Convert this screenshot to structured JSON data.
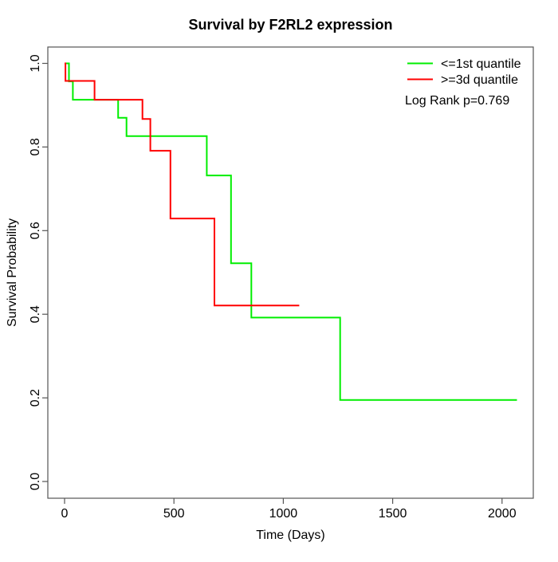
{
  "chart_data": {
    "type": "line",
    "subtype": "kaplan-meier-step",
    "title": "Survival by F2RL2 expression",
    "xlabel": "Time (Days)",
    "ylabel": "Survival Probability",
    "xlim": [
      0,
      2100
    ],
    "ylim": [
      0.0,
      1.0
    ],
    "grid": false,
    "legend_position": "top-right-inside",
    "annotation": "Log Rank p=0.769",
    "x_ticks": [
      {
        "v": 0,
        "label": "0"
      },
      {
        "v": 500,
        "label": "500"
      },
      {
        "v": 1000,
        "label": "1000"
      },
      {
        "v": 1500,
        "label": "1500"
      },
      {
        "v": 2000,
        "label": "2000"
      }
    ],
    "y_ticks": [
      {
        "v": 0.0,
        "label": "0.0"
      },
      {
        "v": 0.2,
        "label": "0.2"
      },
      {
        "v": 0.4,
        "label": "0.4"
      },
      {
        "v": 0.6,
        "label": "0.6"
      },
      {
        "v": 0.8,
        "label": "0.8"
      },
      {
        "v": 1.0,
        "label": "1.0"
      }
    ],
    "series": [
      {
        "name": "<=1st quantile",
        "color": "#00ee00",
        "steps": [
          [
            0,
            1.0
          ],
          [
            20,
            0.957
          ],
          [
            38,
            0.913
          ],
          [
            245,
            0.87
          ],
          [
            283,
            0.826
          ],
          [
            650,
            0.732
          ],
          [
            761,
            0.522
          ],
          [
            854,
            0.392
          ],
          [
            1260,
            0.195
          ]
        ],
        "end_day": 2068
      },
      {
        "name": ">=3d quantile",
        "color": "#ff0000",
        "steps": [
          [
            0,
            1.0
          ],
          [
            4,
            0.958
          ],
          [
            137,
            0.913
          ],
          [
            356,
            0.867
          ],
          [
            392,
            0.791
          ],
          [
            484,
            0.629
          ],
          [
            685,
            0.421
          ]
        ],
        "end_day": 1073
      }
    ],
    "axis_color": "#555555",
    "text_color": "#000000"
  }
}
